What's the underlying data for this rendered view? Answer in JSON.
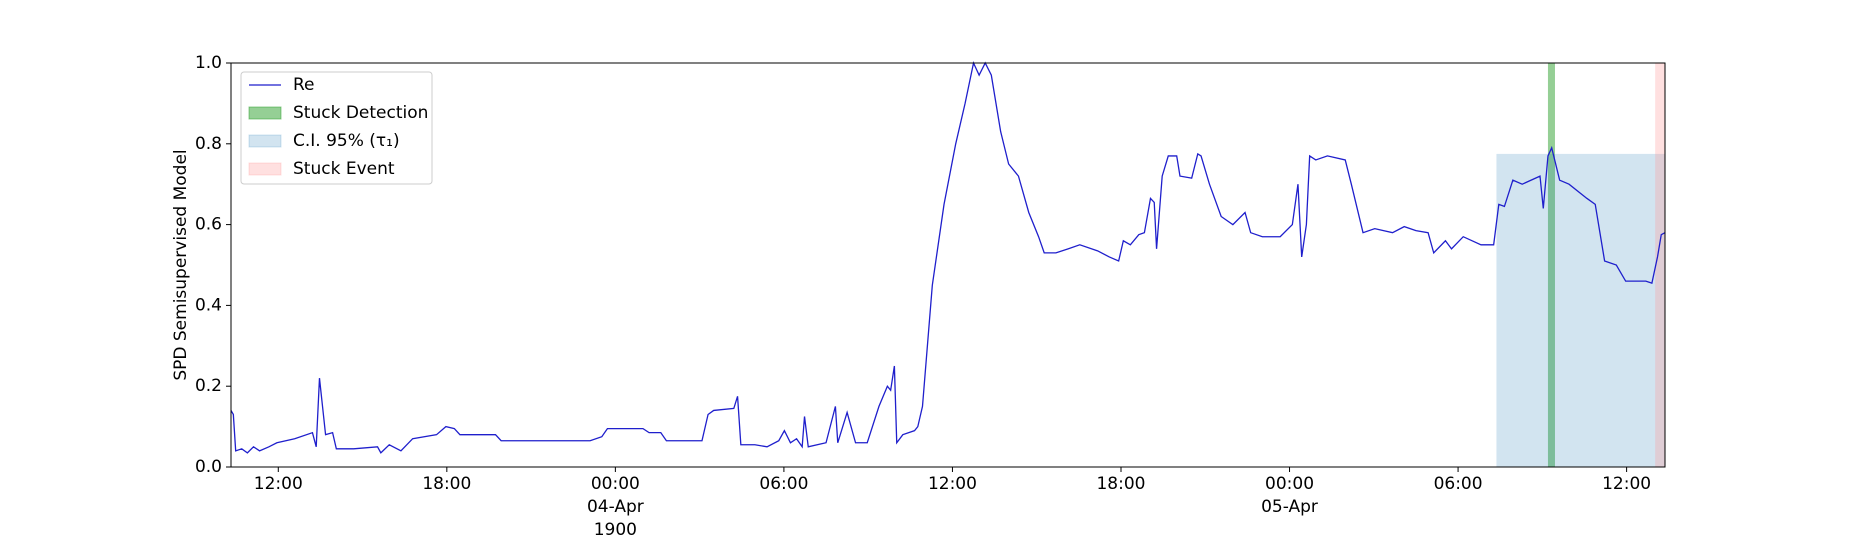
{
  "chart_data": {
    "type": "line",
    "ylabel": "SPD Semisupervised Model",
    "x": [
      "1900-04-03T10:19",
      "1900-04-03T10:24",
      "1900-04-03T10:29",
      "1900-04-03T10:42",
      "1900-04-03T10:54",
      "1900-04-03T11:07",
      "1900-04-03T11:20",
      "1900-04-03T11:40",
      "1900-04-03T11:57",
      "1900-04-03T12:35",
      "1900-04-03T13:13",
      "1900-04-03T13:21",
      "1900-04-03T13:28",
      "1900-04-03T13:41",
      "1900-04-03T13:56",
      "1900-04-03T14:04",
      "1900-04-03T14:41",
      "1900-04-03T15:32",
      "1900-04-03T15:39",
      "1900-04-03T15:57",
      "1900-04-03T16:22",
      "1900-04-03T16:47",
      "1900-04-03T17:38",
      "1900-04-03T17:58",
      "1900-04-03T18:16",
      "1900-04-03T18:28",
      "1900-04-03T19:44",
      "1900-04-03T19:56",
      "1900-04-03T23:06",
      "1900-04-03T23:31",
      "1900-04-03T23:43",
      "1900-04-04T00:59",
      "1900-04-04T01:12",
      "1900-04-04T01:37",
      "1900-04-04T01:49",
      "1900-04-04T03:05",
      "1900-04-04T03:18",
      "1900-04-04T03:30",
      "1900-04-04T04:13",
      "1900-04-04T04:21",
      "1900-04-04T04:28",
      "1900-04-04T04:58",
      "1900-04-04T05:24",
      "1900-04-04T05:49",
      "1900-04-04T06:01",
      "1900-04-04T06:14",
      "1900-04-04T06:27",
      "1900-04-04T06:39",
      "1900-04-04T06:44",
      "1900-04-04T06:52",
      "1900-04-04T07:30",
      "1900-04-04T07:50",
      "1900-04-04T07:55",
      "1900-04-04T08:15",
      "1900-04-04T08:33",
      "1900-04-04T08:58",
      "1900-04-04T09:23",
      "1900-04-04T09:41",
      "1900-04-04T09:48",
      "1900-04-04T09:56",
      "1900-04-04T10:01",
      "1900-04-04T10:14",
      "1900-04-04T10:39",
      "1900-04-04T10:46",
      "1900-04-04T10:56",
      "1900-04-04T11:17",
      "1900-04-04T11:42",
      "1900-04-04T12:07",
      "1900-04-04T12:27",
      "1900-04-04T12:45",
      "1900-04-04T12:57",
      "1900-04-04T13:10",
      "1900-04-04T13:23",
      "1900-04-04T13:43",
      "1900-04-04T14:00",
      "1900-04-04T14:21",
      "1900-04-04T14:43",
      "1900-04-04T15:04",
      "1900-04-04T15:16",
      "1900-04-04T15:41",
      "1900-04-04T16:07",
      "1900-04-04T16:32",
      "1900-04-04T17:10",
      "1900-04-04T17:35",
      "1900-04-04T17:55",
      "1900-04-04T18:05",
      "1900-04-04T18:20",
      "1900-04-04T18:38",
      "1900-04-04T18:50",
      "1900-04-04T19:03",
      "1900-04-04T19:11",
      "1900-04-04T19:16",
      "1900-04-04T19:28",
      "1900-04-04T19:41",
      "1900-04-04T19:59",
      "1900-04-04T20:06",
      "1900-04-04T20:31",
      "1900-04-04T20:44",
      "1900-04-04T20:51",
      "1900-04-04T21:09",
      "1900-04-04T21:34",
      "1900-04-04T21:59",
      "1900-04-04T22:25",
      "1900-04-04T22:37",
      "1900-04-04T23:02",
      "1900-04-04T23:40",
      "1900-04-05T00:06",
      "1900-04-05T00:18",
      "1900-04-05T00:26",
      "1900-04-05T00:36",
      "1900-04-05T00:43",
      "1900-04-05T00:56",
      "1900-04-05T01:21",
      "1900-04-05T01:59",
      "1900-04-05T02:12",
      "1900-04-05T02:37",
      "1900-04-05T03:02",
      "1900-04-05T03:40",
      "1900-04-05T04:05",
      "1900-04-05T04:30",
      "1900-04-05T04:56",
      "1900-04-05T05:08",
      "1900-04-05T05:33",
      "1900-04-05T05:46",
      "1900-04-05T06:11",
      "1900-04-05T06:49",
      "1900-04-05T07:16",
      "1900-04-05T07:27",
      "1900-04-05T07:39",
      "1900-04-05T07:57",
      "1900-04-05T08:17",
      "1900-04-05T08:55",
      "1900-04-05T09:02",
      "1900-04-05T09:12",
      "1900-04-05T09:20",
      "1900-04-05T09:37",
      "1900-04-05T09:57",
      "1900-04-05T10:35",
      "1900-04-05T10:53",
      "1900-04-05T11:13",
      "1900-04-05T11:38",
      "1900-04-05T11:58",
      "1900-04-05T12:41",
      "1900-04-05T12:54",
      "1900-04-05T13:06",
      "1900-04-05T13:14",
      "1900-04-05T13:22"
    ],
    "series": [
      {
        "name": "Re",
        "color": "#1f1fcc",
        "values": [
          0.14,
          0.13,
          0.04,
          0.045,
          0.035,
          0.05,
          0.04,
          0.05,
          0.06,
          0.07,
          0.085,
          0.05,
          0.22,
          0.08,
          0.085,
          0.045,
          0.045,
          0.05,
          0.035,
          0.055,
          0.04,
          0.07,
          0.08,
          0.1,
          0.095,
          0.08,
          0.08,
          0.065,
          0.065,
          0.075,
          0.095,
          0.095,
          0.085,
          0.085,
          0.065,
          0.065,
          0.13,
          0.14,
          0.145,
          0.175,
          0.055,
          0.055,
          0.05,
          0.065,
          0.09,
          0.06,
          0.07,
          0.05,
          0.125,
          0.05,
          0.06,
          0.15,
          0.06,
          0.135,
          0.06,
          0.06,
          0.15,
          0.2,
          0.19,
          0.25,
          0.06,
          0.08,
          0.09,
          0.1,
          0.15,
          0.45,
          0.65,
          0.8,
          0.9,
          1.0,
          0.97,
          1.0,
          0.97,
          0.83,
          0.75,
          0.72,
          0.63,
          0.57,
          0.53,
          0.53,
          0.54,
          0.55,
          0.535,
          0.52,
          0.51,
          0.56,
          0.55,
          0.575,
          0.58,
          0.665,
          0.655,
          0.54,
          0.72,
          0.77,
          0.77,
          0.72,
          0.715,
          0.775,
          0.77,
          0.7,
          0.62,
          0.6,
          0.63,
          0.58,
          0.57,
          0.57,
          0.6,
          0.7,
          0.52,
          0.6,
          0.77,
          0.76,
          0.77,
          0.76,
          0.7,
          0.58,
          0.59,
          0.58,
          0.595,
          0.585,
          0.58,
          0.53,
          0.56,
          0.54,
          0.57,
          0.55,
          0.55,
          0.65,
          0.645,
          0.71,
          0.7,
          0.72,
          0.64,
          0.77,
          0.79,
          0.71,
          0.7,
          0.665,
          0.65,
          0.51,
          0.5,
          0.46,
          0.46,
          0.455,
          0.52,
          0.575,
          0.58
        ]
      }
    ],
    "spans": [
      {
        "name": "Stuck Detection",
        "color": "#2ca02c",
        "opacity": 0.5,
        "x": [
          "1900-04-05T09:12",
          "1900-04-05T09:27"
        ]
      },
      {
        "name": "C.I. 95% (τ₁)",
        "color": "#1f77b4",
        "opacity": 0.2,
        "x": [
          "1900-04-05T07:22",
          "1900-04-05T13:22"
        ],
        "y": [
          0,
          0.775
        ]
      },
      {
        "name": "Stuck Event",
        "color": "#ff9999",
        "opacity": 0.3,
        "x": [
          "1900-04-05T13:01",
          "1900-04-05T13:22"
        ]
      }
    ],
    "xlim": [
      "1900-04-03T10:19",
      "1900-04-05T13:22"
    ],
    "xticks": [
      {
        "value": "1900-04-03T12:00",
        "label": "12:00"
      },
      {
        "value": "1900-04-03T18:00",
        "label": "18:00"
      },
      {
        "value": "1900-04-04T00:00",
        "label": "00:00\n04-Apr\n1900"
      },
      {
        "value": "1900-04-04T06:00",
        "label": "06:00"
      },
      {
        "value": "1900-04-04T12:00",
        "label": "12:00"
      },
      {
        "value": "1900-04-04T18:00",
        "label": "18:00"
      },
      {
        "value": "1900-04-05T00:00",
        "label": "00:00\n05-Apr"
      },
      {
        "value": "1900-04-05T06:00",
        "label": "06:00"
      },
      {
        "value": "1900-04-05T12:00",
        "label": "12:00"
      }
    ],
    "ylim": [
      0,
      1
    ],
    "yticks": [
      {
        "value": 0,
        "label": "0.0"
      },
      0.2,
      0.4,
      0.6,
      0.8,
      {
        "value": 1,
        "label": "1.0"
      }
    ],
    "legend": "upper left"
  }
}
